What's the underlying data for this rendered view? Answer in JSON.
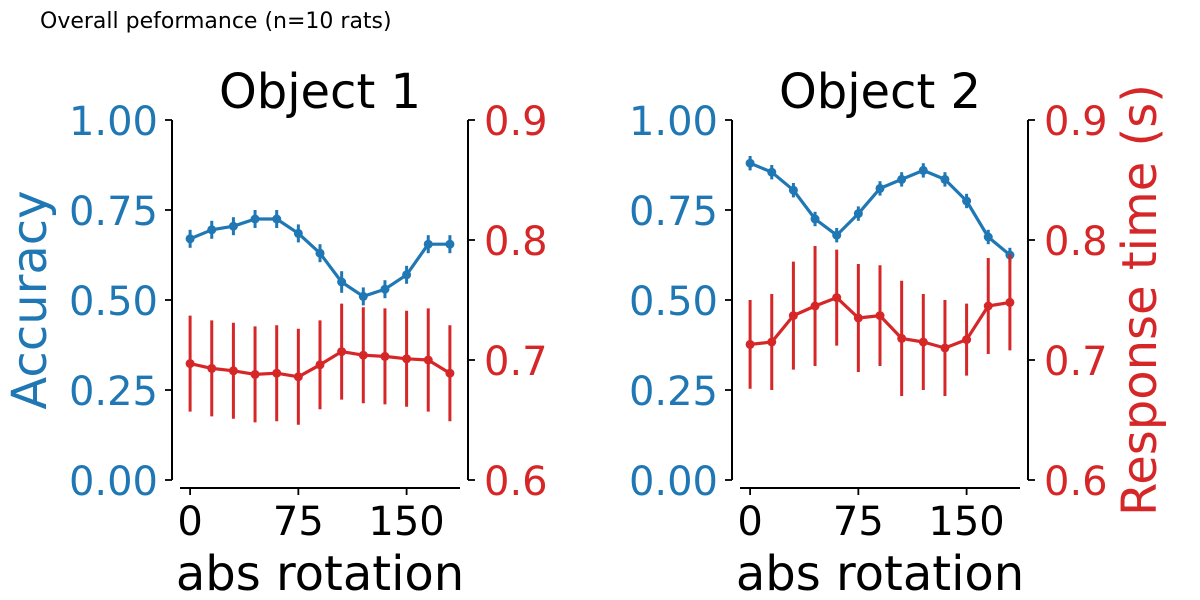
{
  "figure": {
    "title": "Overall peformance (n=10 rats)"
  },
  "colors": {
    "accuracy": "#1f77b4",
    "response_time": "#d62728",
    "axis": "#000000"
  },
  "chart_data": [
    {
      "type": "line",
      "title": "Object 1",
      "xlabel": "abs rotation",
      "ylabel": "Accuracy",
      "ylabel_right": "",
      "xlim": [
        -7,
        187
      ],
      "ylim": [
        0,
        1
      ],
      "ylim_right": [
        0.6,
        0.9
      ],
      "x_ticks": [
        0,
        75,
        150
      ],
      "y_ticks": [
        "0.00",
        "0.25",
        "0.50",
        "0.75",
        "1.00"
      ],
      "y_ticks_right": [
        "0.6",
        "0.7",
        "0.8",
        "0.9"
      ],
      "grid": false,
      "x": [
        0,
        15,
        30,
        45,
        60,
        75,
        90,
        105,
        120,
        135,
        150,
        165,
        180
      ],
      "series": [
        {
          "axis": "left",
          "values": [
            0.67,
            0.695,
            0.705,
            0.725,
            0.725,
            0.685,
            0.63,
            0.55,
            0.51,
            0.53,
            0.57,
            0.655,
            0.655
          ],
          "errors": [
            0.025,
            0.025,
            0.025,
            0.025,
            0.025,
            0.025,
            0.025,
            0.03,
            0.025,
            0.025,
            0.025,
            0.025,
            0.025
          ]
        },
        {
          "axis": "right",
          "values": [
            0.697,
            0.693,
            0.691,
            0.688,
            0.689,
            0.686,
            0.696,
            0.707,
            0.704,
            0.703,
            0.701,
            0.7,
            0.689
          ],
          "errors": [
            0.04,
            0.04,
            0.04,
            0.04,
            0.04,
            0.04,
            0.037,
            0.04,
            0.04,
            0.04,
            0.04,
            0.043,
            0.04
          ]
        }
      ]
    },
    {
      "type": "line",
      "title": "Object 2",
      "xlabel": "abs rotation",
      "ylabel": "",
      "ylabel_right": "Response time (s)",
      "xlim": [
        -7,
        187
      ],
      "ylim": [
        0,
        1
      ],
      "ylim_right": [
        0.6,
        0.9
      ],
      "x_ticks": [
        0,
        75,
        150
      ],
      "y_ticks": [
        "0.00",
        "0.25",
        "0.50",
        "0.75",
        "1.00"
      ],
      "y_ticks_right": [
        "0.6",
        "0.7",
        "0.8",
        "0.9"
      ],
      "grid": false,
      "x": [
        0,
        15,
        30,
        45,
        60,
        75,
        90,
        105,
        120,
        135,
        150,
        165,
        180
      ],
      "series": [
        {
          "axis": "left",
          "values": [
            0.88,
            0.855,
            0.805,
            0.725,
            0.68,
            0.74,
            0.81,
            0.835,
            0.86,
            0.835,
            0.775,
            0.675,
            0.625
          ],
          "errors": [
            0.02,
            0.02,
            0.02,
            0.02,
            0.02,
            0.02,
            0.02,
            0.02,
            0.02,
            0.02,
            0.02,
            0.02,
            0.02
          ]
        },
        {
          "axis": "right",
          "values": [
            0.713,
            0.715,
            0.737,
            0.745,
            0.752,
            0.735,
            0.737,
            0.718,
            0.715,
            0.71,
            0.717,
            0.745,
            0.748
          ],
          "errors": [
            0.037,
            0.04,
            0.045,
            0.05,
            0.04,
            0.045,
            0.042,
            0.048,
            0.04,
            0.04,
            0.03,
            0.04,
            0.04
          ]
        }
      ]
    }
  ]
}
